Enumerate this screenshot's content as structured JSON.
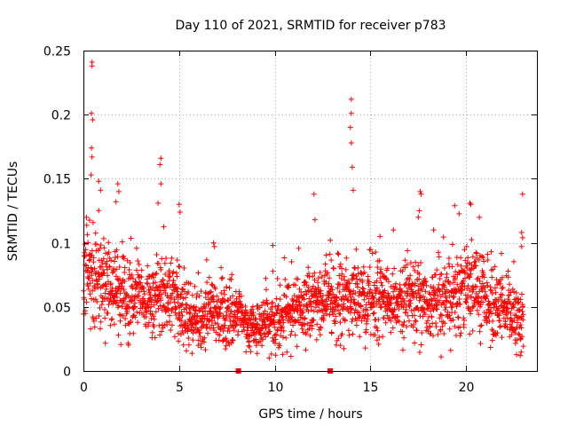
{
  "chart_data": {
    "type": "scatter",
    "title": "Day 110 of 2021, SRMTID for receiver p783",
    "xlabel": "GPS time / hours",
    "ylabel": "SRMTID / TECUs",
    "xlim": [
      0,
      23.7
    ],
    "ylim": [
      0,
      0.25
    ],
    "xticks": [
      0,
      5,
      10,
      15,
      20
    ],
    "xtick_labels": [
      "0",
      "5",
      "10",
      "15",
      "20"
    ],
    "yticks": [
      0,
      0.05,
      0.1,
      0.15,
      0.2,
      0.25
    ],
    "ytick_labels": [
      "0",
      "0.05",
      "0.1",
      "0.15",
      "0.2",
      "0.25"
    ],
    "grid": true,
    "marker": "plus",
    "color": "#ff0000",
    "axis_markers": [
      {
        "x": 8.1,
        "y": 0
      },
      {
        "x": 12.9,
        "y": 0
      }
    ],
    "profile": {
      "x": [
        0,
        0.5,
        1,
        1.5,
        2,
        2.5,
        3,
        3.5,
        4,
        4.5,
        5,
        5.5,
        6,
        6.5,
        7,
        7.5,
        8,
        8.5,
        9,
        9.5,
        10,
        10.5,
        11,
        11.5,
        12,
        12.5,
        13,
        13.5,
        14,
        14.5,
        15,
        15.5,
        16,
        16.5,
        17,
        17.5,
        18,
        18.5,
        19,
        19.5,
        20,
        20.5,
        21,
        21.5,
        22,
        22.5,
        23
      ],
      "median": [
        0.07,
        0.072,
        0.07,
        0.062,
        0.058,
        0.06,
        0.058,
        0.055,
        0.06,
        0.058,
        0.052,
        0.045,
        0.04,
        0.042,
        0.045,
        0.044,
        0.045,
        0.035,
        0.034,
        0.036,
        0.04,
        0.045,
        0.046,
        0.048,
        0.05,
        0.052,
        0.05,
        0.055,
        0.058,
        0.056,
        0.055,
        0.058,
        0.055,
        0.055,
        0.06,
        0.06,
        0.05,
        0.052,
        0.05,
        0.06,
        0.07,
        0.065,
        0.055,
        0.05,
        0.045,
        0.042,
        0.04
      ],
      "spread": [
        0.025,
        0.025,
        0.025,
        0.02,
        0.018,
        0.02,
        0.018,
        0.018,
        0.02,
        0.018,
        0.018,
        0.016,
        0.016,
        0.016,
        0.016,
        0.016,
        0.015,
        0.012,
        0.012,
        0.012,
        0.015,
        0.016,
        0.016,
        0.016,
        0.018,
        0.018,
        0.018,
        0.018,
        0.02,
        0.018,
        0.018,
        0.018,
        0.018,
        0.018,
        0.02,
        0.02,
        0.018,
        0.018,
        0.018,
        0.02,
        0.022,
        0.02,
        0.02,
        0.018,
        0.018,
        0.018,
        0.018
      ]
    },
    "outliers": [
      {
        "x": 0.45,
        "y": 0.241
      },
      {
        "x": 0.45,
        "y": 0.238
      },
      {
        "x": 0.42,
        "y": 0.201
      },
      {
        "x": 0.48,
        "y": 0.196
      },
      {
        "x": 0.42,
        "y": 0.174
      },
      {
        "x": 0.45,
        "y": 0.167
      },
      {
        "x": 0.4,
        "y": 0.153
      },
      {
        "x": 0.8,
        "y": 0.148
      },
      {
        "x": 0.9,
        "y": 0.141
      },
      {
        "x": 1.8,
        "y": 0.146
      },
      {
        "x": 1.85,
        "y": 0.14
      },
      {
        "x": 1.7,
        "y": 0.132
      },
      {
        "x": 4.05,
        "y": 0.166
      },
      {
        "x": 4.0,
        "y": 0.161
      },
      {
        "x": 4.05,
        "y": 0.146
      },
      {
        "x": 3.9,
        "y": 0.131
      },
      {
        "x": 5.0,
        "y": 0.13
      },
      {
        "x": 5.05,
        "y": 0.124
      },
      {
        "x": 12.05,
        "y": 0.138
      },
      {
        "x": 12.1,
        "y": 0.118
      },
      {
        "x": 14.0,
        "y": 0.212
      },
      {
        "x": 14.0,
        "y": 0.201
      },
      {
        "x": 13.95,
        "y": 0.19
      },
      {
        "x": 14.0,
        "y": 0.178
      },
      {
        "x": 14.05,
        "y": 0.159
      },
      {
        "x": 14.1,
        "y": 0.141
      },
      {
        "x": 17.6,
        "y": 0.14
      },
      {
        "x": 17.65,
        "y": 0.138
      },
      {
        "x": 17.55,
        "y": 0.125
      },
      {
        "x": 17.5,
        "y": 0.12
      },
      {
        "x": 19.4,
        "y": 0.129
      },
      {
        "x": 20.2,
        "y": 0.131
      },
      {
        "x": 20.25,
        "y": 0.13
      },
      {
        "x": 22.95,
        "y": 0.138
      },
      {
        "x": 22.9,
        "y": 0.108
      },
      {
        "x": 22.95,
        "y": 0.104
      },
      {
        "x": 22.9,
        "y": 0.097
      },
      {
        "x": 9.9,
        "y": 0.098
      },
      {
        "x": 6.8,
        "y": 0.1
      },
      {
        "x": 6.85,
        "y": 0.097
      },
      {
        "x": 12.9,
        "y": 0.102
      },
      {
        "x": 15.5,
        "y": 0.105
      },
      {
        "x": 16.2,
        "y": 0.11
      },
      {
        "x": 18.3,
        "y": 0.11
      }
    ],
    "n_dense_points": 2300
  }
}
